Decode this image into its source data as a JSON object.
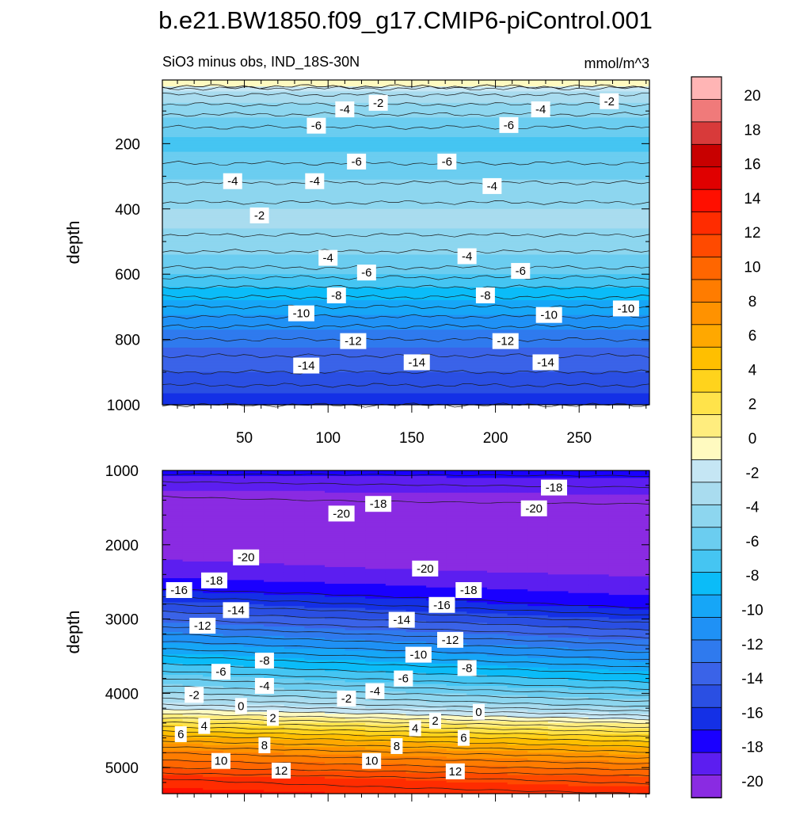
{
  "title": "b.e21.BW1850.f09_g17.CMIP6-piControl.001",
  "subtitle_left": "SiO3 minus obs, IND_18S-30N",
  "subtitle_right": "mmol/m^3",
  "chart_data": [
    {
      "type": "heatmap",
      "panel": "upper",
      "ylabel": "depth",
      "xlim": [
        1,
        292
      ],
      "ylim": [
        1000,
        5
      ],
      "y_reversed": true,
      "xticks": [
        50,
        100,
        150,
        200,
        250
      ],
      "yticks": [
        200,
        400,
        600,
        800,
        1000
      ],
      "profile": [
        [
          5,
          1
        ],
        [
          25,
          0
        ],
        [
          30,
          -1
        ],
        [
          50,
          -2
        ],
        [
          80,
          -3
        ],
        [
          110,
          -4
        ],
        [
          150,
          -5
        ],
        [
          200,
          -6
        ],
        [
          260,
          -5
        ],
        [
          320,
          -4
        ],
        [
          380,
          -3
        ],
        [
          430,
          -2.5
        ],
        [
          480,
          -3
        ],
        [
          530,
          -4
        ],
        [
          580,
          -5
        ],
        [
          640,
          -7
        ],
        [
          700,
          -9
        ],
        [
          760,
          -11
        ],
        [
          820,
          -12.5
        ],
        [
          880,
          -13.5
        ],
        [
          940,
          -15
        ],
        [
          1000,
          -16
        ]
      ],
      "contour_labels": [
        {
          "x": 130,
          "y": 75,
          "text": "-2"
        },
        {
          "x": 268,
          "y": 70,
          "text": "-2"
        },
        {
          "x": 110,
          "y": 95,
          "text": "-4"
        },
        {
          "x": 227,
          "y": 95,
          "text": "-4"
        },
        {
          "x": 93,
          "y": 145,
          "text": "-6"
        },
        {
          "x": 208,
          "y": 143,
          "text": "-6"
        },
        {
          "x": 117,
          "y": 255,
          "text": "-6"
        },
        {
          "x": 171,
          "y": 255,
          "text": "-6"
        },
        {
          "x": 43,
          "y": 315,
          "text": "-4"
        },
        {
          "x": 92,
          "y": 315,
          "text": "-4"
        },
        {
          "x": 198,
          "y": 330,
          "text": "-4"
        },
        {
          "x": 59,
          "y": 420,
          "text": "-2"
        },
        {
          "x": 100,
          "y": 550,
          "text": "-4"
        },
        {
          "x": 183,
          "y": 545,
          "text": "-4"
        },
        {
          "x": 123,
          "y": 595,
          "text": "-6"
        },
        {
          "x": 215,
          "y": 590,
          "text": "-6"
        },
        {
          "x": 105,
          "y": 665,
          "text": "-8"
        },
        {
          "x": 194,
          "y": 665,
          "text": "-8"
        },
        {
          "x": 84,
          "y": 720,
          "text": "-10"
        },
        {
          "x": 232,
          "y": 725,
          "text": "-10"
        },
        {
          "x": 278,
          "y": 705,
          "text": "-10"
        },
        {
          "x": 115,
          "y": 805,
          "text": "-12"
        },
        {
          "x": 206,
          "y": 805,
          "text": "-12"
        },
        {
          "x": 87,
          "y": 880,
          "text": "-14"
        },
        {
          "x": 153,
          "y": 870,
          "text": "-14"
        },
        {
          "x": 230,
          "y": 870,
          "text": "-14"
        }
      ]
    },
    {
      "type": "heatmap",
      "panel": "lower",
      "ylabel": "depth",
      "xlim": [
        1,
        292
      ],
      "ylim": [
        5350,
        1000
      ],
      "y_reversed": true,
      "yticks": [
        1000,
        2000,
        3000,
        4000,
        5000
      ],
      "profile_left": [
        [
          1000,
          -17.5
        ],
        [
          1150,
          -19
        ],
        [
          1350,
          -20
        ],
        [
          1700,
          -20.5
        ],
        [
          2050,
          -20.2
        ],
        [
          2350,
          -19
        ],
        [
          2600,
          -17
        ],
        [
          2850,
          -14.5
        ],
        [
          3100,
          -12
        ],
        [
          3400,
          -9
        ],
        [
          3700,
          -6
        ],
        [
          3950,
          -3.5
        ],
        [
          4150,
          -1
        ],
        [
          4300,
          1.5
        ],
        [
          4450,
          4
        ],
        [
          4600,
          6.5
        ],
        [
          4800,
          9
        ],
        [
          5000,
          11
        ],
        [
          5150,
          13
        ],
        [
          5350,
          14
        ]
      ],
      "profile_right": [
        [
          1000,
          -17.5
        ],
        [
          1150,
          -18.5
        ],
        [
          1300,
          -19.5
        ],
        [
          1600,
          -20.5
        ],
        [
          2000,
          -20.8
        ],
        [
          2300,
          -20.3
        ],
        [
          2550,
          -19
        ],
        [
          2800,
          -17.5
        ],
        [
          3000,
          -15.5
        ],
        [
          3300,
          -12.5
        ],
        [
          3600,
          -9.5
        ],
        [
          3900,
          -6.5
        ],
        [
          4150,
          -3.5
        ],
        [
          4300,
          -1
        ],
        [
          4400,
          1
        ],
        [
          4550,
          3.5
        ],
        [
          4750,
          6.5
        ],
        [
          4950,
          9
        ],
        [
          5150,
          11.5
        ],
        [
          5350,
          13
        ]
      ],
      "contour_labels": [
        {
          "x": 235,
          "y": 1230,
          "text": "-18"
        },
        {
          "x": 130,
          "y": 1450,
          "text": "-18"
        },
        {
          "x": 108,
          "y": 1580,
          "text": "-20"
        },
        {
          "x": 223,
          "y": 1510,
          "text": "-20"
        },
        {
          "x": 51,
          "y": 2170,
          "text": "-20"
        },
        {
          "x": 158,
          "y": 2320,
          "text": "-20"
        },
        {
          "x": 32,
          "y": 2480,
          "text": "-18"
        },
        {
          "x": 184,
          "y": 2610,
          "text": "-18"
        },
        {
          "x": 11,
          "y": 2610,
          "text": "-16"
        },
        {
          "x": 168,
          "y": 2810,
          "text": "-16"
        },
        {
          "x": 45,
          "y": 2880,
          "text": "-14"
        },
        {
          "x": 144,
          "y": 3010,
          "text": "-14"
        },
        {
          "x": 25,
          "y": 3090,
          "text": "-12"
        },
        {
          "x": 173,
          "y": 3280,
          "text": "-12"
        },
        {
          "x": 154,
          "y": 3480,
          "text": "-10"
        },
        {
          "x": 62,
          "y": 3560,
          "text": "-8"
        },
        {
          "x": 183,
          "y": 3660,
          "text": "-8"
        },
        {
          "x": 36,
          "y": 3710,
          "text": "-6"
        },
        {
          "x": 145,
          "y": 3800,
          "text": "-6"
        },
        {
          "x": 62,
          "y": 3900,
          "text": "-4"
        },
        {
          "x": 128,
          "y": 3970,
          "text": "-4"
        },
        {
          "x": 20,
          "y": 4020,
          "text": "-2"
        },
        {
          "x": 111,
          "y": 4070,
          "text": "-2"
        },
        {
          "x": 48,
          "y": 4170,
          "text": "0"
        },
        {
          "x": 190,
          "y": 4250,
          "text": "0"
        },
        {
          "x": 67,
          "y": 4330,
          "text": "2"
        },
        {
          "x": 164,
          "y": 4370,
          "text": "2"
        },
        {
          "x": 26,
          "y": 4440,
          "text": "4"
        },
        {
          "x": 152,
          "y": 4470,
          "text": "4"
        },
        {
          "x": 12,
          "y": 4550,
          "text": "6"
        },
        {
          "x": 181,
          "y": 4600,
          "text": "6"
        },
        {
          "x": 62,
          "y": 4700,
          "text": "8"
        },
        {
          "x": 141,
          "y": 4710,
          "text": "8"
        },
        {
          "x": 36,
          "y": 4910,
          "text": "10"
        },
        {
          "x": 126,
          "y": 4910,
          "text": "10"
        },
        {
          "x": 72,
          "y": 5040,
          "text": "12"
        },
        {
          "x": 176,
          "y": 5050,
          "text": "12"
        }
      ]
    }
  ],
  "colorbar": {
    "levels": [
      -20,
      -18,
      -16,
      -14,
      -12,
      -10,
      -8,
      -6,
      -4,
      -2,
      0,
      2,
      4,
      6,
      8,
      10,
      12,
      14,
      16,
      18,
      20
    ],
    "labels": [
      "20",
      "18",
      "16",
      "14",
      "12",
      "10",
      "8",
      "6",
      "4",
      "2",
      "0",
      "-2",
      "-4",
      "-6",
      "-8",
      "-10",
      "-12",
      "-14",
      "-16",
      "-18",
      "-20"
    ],
    "colors": [
      "#8a2be2",
      "#5c1ef0",
      "#1a00ff",
      "#1430e6",
      "#2a4fe3",
      "#3a63e8",
      "#2f7aee",
      "#1f91f5",
      "#16a6f7",
      "#0bbcf8",
      "#45c5f2",
      "#6bcdf0",
      "#8dd6ef",
      "#a9dcef",
      "#c5e6f4",
      "#fffac0",
      "#ffed7e",
      "#ffe34a",
      "#ffd31c",
      "#ffbf00",
      "#ffa800",
      "#ff9200",
      "#ff7c00",
      "#ff6600",
      "#ff4a00",
      "#ff2c00",
      "#ff0f00",
      "#e00000",
      "#c80000",
      "#d83a3a",
      "#f07a7a",
      "#ffb5b5"
    ]
  }
}
